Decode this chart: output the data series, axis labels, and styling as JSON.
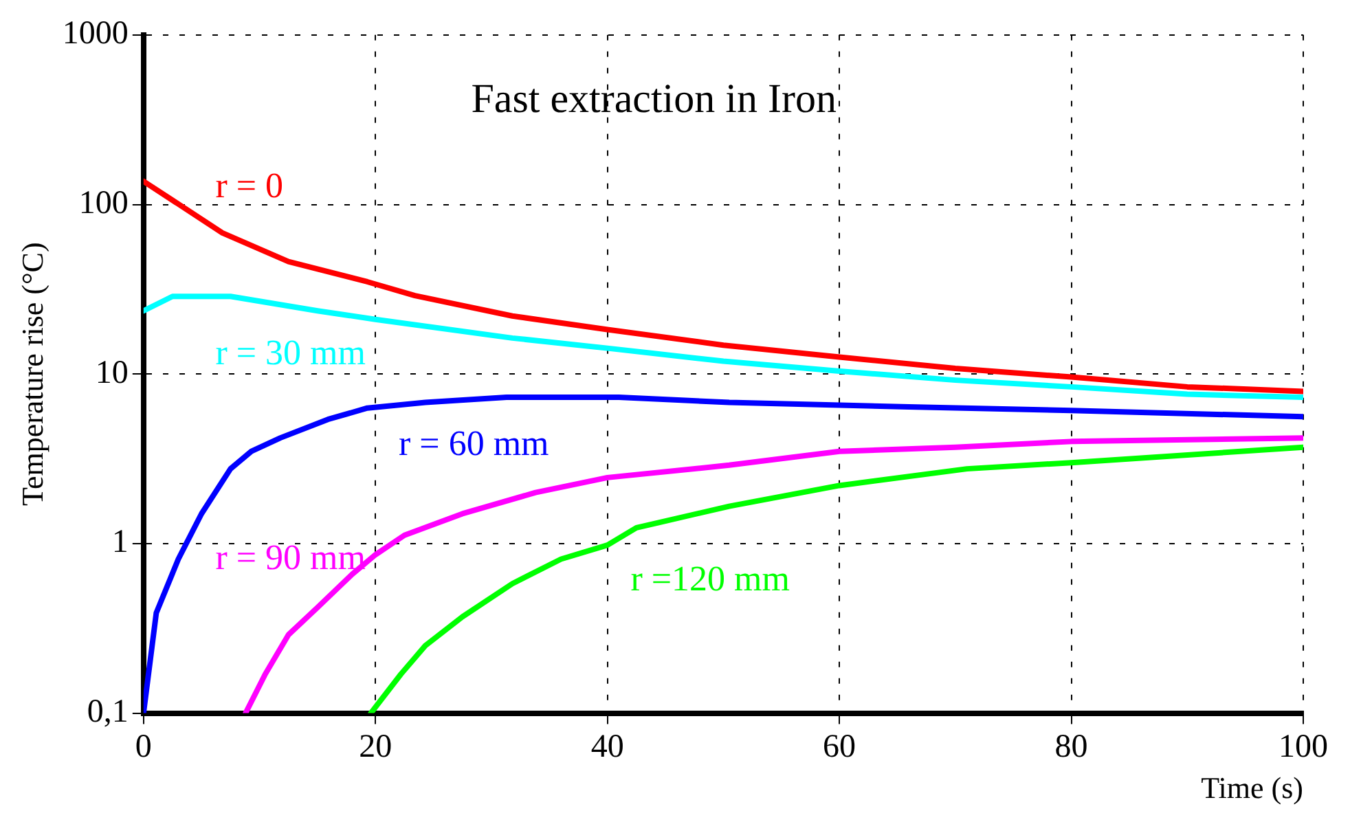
{
  "chart_data": {
    "type": "line",
    "title": "Fast extraction in Iron",
    "xlabel": "Time (s)",
    "ylabel": "Temperature rise (°C)",
    "log": "y",
    "grid": true,
    "legend": false,
    "marker": "none",
    "line_style": "solid",
    "xlim": [
      0,
      100
    ],
    "xticks": [
      0,
      20,
      40,
      60,
      80,
      100
    ],
    "ylim": [
      0.1,
      1000
    ],
    "yticks": [
      {
        "value": 0.1,
        "label": "0,1"
      },
      1,
      10,
      100,
      1000
    ],
    "series": [
      {
        "name": "r = 0",
        "color": "#ff0000",
        "x": [
          0,
          6.8,
          12.5,
          19.3,
          23.4,
          31.8,
          40,
          50,
          60,
          70,
          80,
          90,
          100
        ],
        "values": [
          137,
          68,
          46,
          35,
          29,
          22,
          18.3,
          14.8,
          12.6,
          10.8,
          9.6,
          8.4,
          7.9
        ]
      },
      {
        "name": "r = 30 mm",
        "color": "#00ffff",
        "x": [
          0,
          2.5,
          7.5,
          15,
          20,
          31.8,
          40,
          50,
          60,
          70,
          80,
          90,
          100
        ],
        "values": [
          23.6,
          28.7,
          28.7,
          23.6,
          21,
          16.3,
          14.2,
          11.9,
          10.4,
          9.2,
          8.4,
          7.6,
          7.3
        ]
      },
      {
        "name": "r = 60 mm",
        "color": "#0000ff",
        "x": [
          0,
          1.1,
          3,
          5,
          7.5,
          9.3,
          11.8,
          15.9,
          19.3,
          24.3,
          31.3,
          41,
          50.5,
          66,
          80,
          100
        ],
        "values": [
          0.1,
          0.39,
          0.81,
          1.5,
          2.76,
          3.5,
          4.2,
          5.4,
          6.3,
          6.8,
          7.3,
          7.3,
          6.8,
          6.4,
          6.1,
          5.6
        ]
      },
      {
        "name": "r = 90 mm",
        "color": "#ff00ff",
        "x": [
          8.8,
          10.5,
          12.5,
          15,
          18,
          20,
          22.5,
          27.5,
          33.8,
          40,
          50.5,
          60,
          70,
          80,
          100
        ],
        "values": [
          0.1,
          0.17,
          0.29,
          0.42,
          0.66,
          0.86,
          1.12,
          1.5,
          2,
          2.45,
          2.9,
          3.5,
          3.7,
          4,
          4.2
        ]
      },
      {
        "name": "r =120 mm",
        "color": "#00ff00",
        "x": [
          19.6,
          22.2,
          24.3,
          27.5,
          31.8,
          36,
          40,
          42.5,
          50.5,
          60,
          71,
          80,
          100
        ],
        "values": [
          0.1,
          0.17,
          0.25,
          0.37,
          0.58,
          0.81,
          0.98,
          1.24,
          1.66,
          2.2,
          2.76,
          3,
          3.7
        ]
      }
    ]
  }
}
